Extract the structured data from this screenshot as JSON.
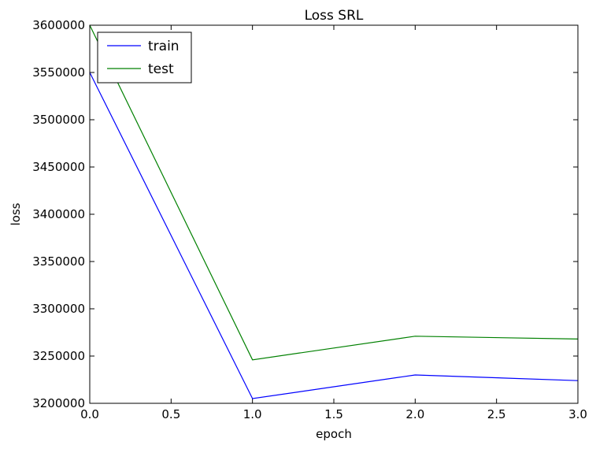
{
  "chart_data": {
    "type": "line",
    "title": "Loss SRL",
    "xlabel": "epoch",
    "ylabel": "loss",
    "xlim": [
      0.0,
      3.0
    ],
    "ylim": [
      3200000,
      3600000
    ],
    "xticks": [
      "0.0",
      "0.5",
      "1.0",
      "1.5",
      "2.0",
      "2.5",
      "3.0"
    ],
    "yticks": [
      "3200000",
      "3250000",
      "3300000",
      "3350000",
      "3400000",
      "3450000",
      "3500000",
      "3550000",
      "3600000"
    ],
    "x": [
      0,
      1,
      2,
      3
    ],
    "series": [
      {
        "name": "train",
        "color": "#0000ff",
        "values": [
          3550000,
          3205000,
          3230000,
          3224000
        ]
      },
      {
        "name": "test",
        "color": "#008000",
        "values": [
          3600000,
          3246000,
          3271000,
          3268000
        ]
      }
    ],
    "legend": {
      "position": "top-left"
    }
  }
}
